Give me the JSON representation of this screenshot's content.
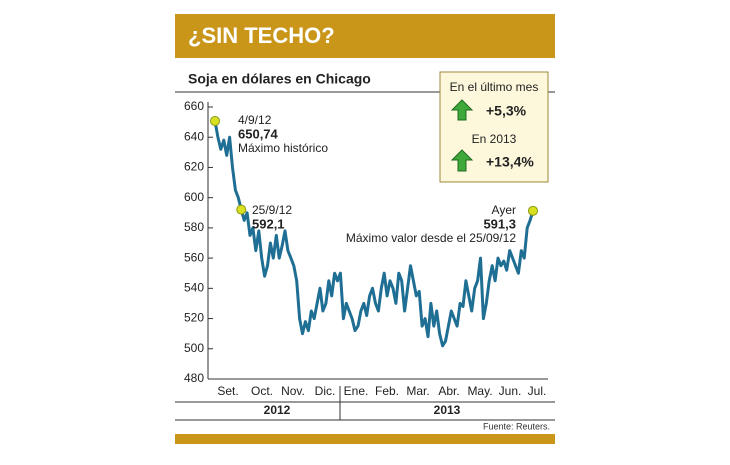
{
  "chart_data": {
    "type": "line",
    "title": "¿SIN TECHO?",
    "subtitle": "Soja en dólares en Chicago",
    "ylim": [
      480,
      660
    ],
    "yticks": [
      480,
      500,
      520,
      540,
      560,
      580,
      600,
      620,
      640,
      660
    ],
    "months": [
      "Set.",
      "Oct.",
      "Nov.",
      "Dic.",
      "Ene.",
      "Feb.",
      "Mar.",
      "Abr.",
      "May.",
      "Jun.",
      "Jul."
    ],
    "years": [
      "2012",
      "2013"
    ],
    "series": [
      {
        "color": "#1f6e94",
        "values": [
          650.74,
          640,
          632,
          638,
          628,
          640,
          620,
          605,
          600,
          592.1,
          585,
          590,
          575,
          580,
          565,
          578,
          560,
          548,
          555,
          570,
          560,
          575,
          560,
          568,
          578,
          565,
          560,
          555,
          545,
          520,
          510,
          518,
          512,
          525,
          520,
          530,
          540,
          525,
          530,
          545,
          535,
          550,
          545,
          550,
          520,
          530,
          525,
          520,
          512,
          515,
          525,
          530,
          522,
          535,
          540,
          530,
          525,
          540,
          550,
          535,
          545,
          540,
          530,
          550,
          545,
          525,
          540,
          555,
          545,
          535,
          538,
          515,
          520,
          508,
          530,
          515,
          525,
          510,
          502,
          505,
          515,
          525,
          520,
          515,
          530,
          528,
          545,
          535,
          525,
          540,
          545,
          560,
          520,
          530,
          545,
          555,
          545,
          560,
          555,
          558,
          552,
          565,
          560,
          555,
          550,
          565,
          560,
          580,
          585,
          591.3
        ]
      }
    ],
    "annotations": [
      {
        "date": "4/9/12",
        "value_label": "650,74",
        "note": "Máximo histórico"
      },
      {
        "date": "25/9/12",
        "value_label": "592,1"
      },
      {
        "date": "Ayer",
        "value_label": "591,3",
        "note": "Máximo valor desde el 25/09/12"
      }
    ],
    "changes": [
      {
        "label": "En el último mes",
        "value_label": "+5,3%"
      },
      {
        "label": "En 2013",
        "value_label": "+13,4%"
      }
    ],
    "source": "Fuente: Reuters."
  }
}
